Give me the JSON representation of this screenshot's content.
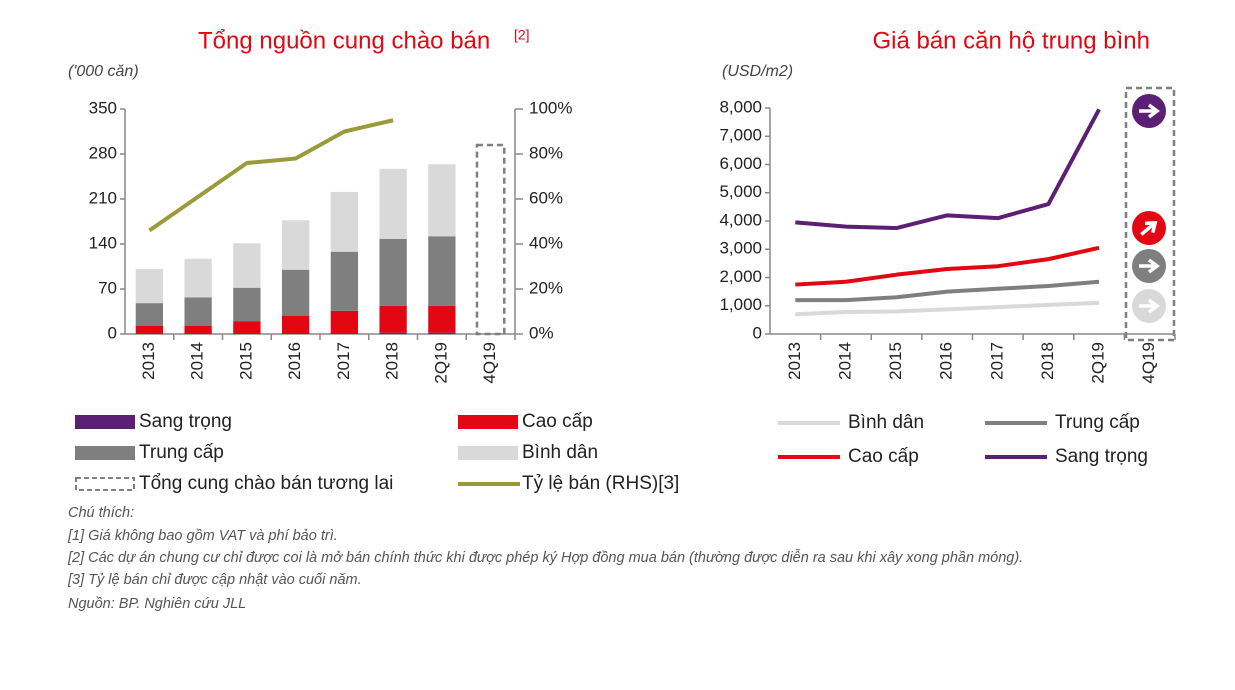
{
  "chart_data": [
    {
      "type": "bar",
      "title": "Tổng nguồn cung chào bán",
      "title_note": "[2]",
      "y_label": "('000 căn)",
      "categories": [
        "2013",
        "2014",
        "2015",
        "2016",
        "2017",
        "2018",
        "2Q19",
        "4Q19"
      ],
      "series": [
        {
          "name": "Sang trọng",
          "type": "bar",
          "color": "#5b1f74",
          "values": [
            0,
            0,
            0,
            0,
            0,
            2,
            2,
            null
          ]
        },
        {
          "name": "Cao cấp",
          "type": "bar",
          "color": "#e30613",
          "values": [
            13,
            13,
            20,
            28,
            36,
            42,
            42,
            null
          ]
        },
        {
          "name": "Trung cấp",
          "type": "bar",
          "color": "#7f7f7f",
          "values": [
            35,
            44,
            52,
            72,
            92,
            104,
            108,
            null
          ]
        },
        {
          "name": "Bình dân",
          "type": "bar",
          "color": "#d9d9d9",
          "values": [
            53,
            60,
            69,
            77,
            93,
            109,
            112,
            null
          ]
        },
        {
          "name": "Tổng cung chào bán tương lai",
          "type": "outline",
          "color": "#7f7f7f",
          "values": [
            null,
            null,
            null,
            null,
            null,
            null,
            null,
            294
          ]
        },
        {
          "name": "Tỷ lệ bán (RHS)[3]",
          "type": "line",
          "axis": "y2",
          "color": "#9a9a3a",
          "values": [
            46,
            61,
            76,
            78,
            90,
            95,
            null,
            null
          ]
        }
      ],
      "ylim": [
        0,
        350
      ],
      "yticks": [
        0,
        70,
        140,
        210,
        280,
        350
      ],
      "y2lim": [
        0,
        100
      ],
      "y2ticks": [
        {
          "value": 0,
          "label": "0%"
        },
        {
          "value": 20,
          "label": "20%"
        },
        {
          "value": 40,
          "label": "40%"
        },
        {
          "value": 60,
          "label": "60%"
        },
        {
          "value": 80,
          "label": "80%"
        },
        {
          "value": 100,
          "label": "100%"
        }
      ]
    },
    {
      "type": "line",
      "title": "Giá bán căn hộ trung bình",
      "y_label": "(USD/m2)",
      "categories": [
        "2013",
        "2014",
        "2015",
        "2016",
        "2017",
        "2018",
        "2Q19",
        "4Q19"
      ],
      "series": [
        {
          "name": "Bình dân",
          "color": "#d9d9d9",
          "values": [
            700,
            780,
            800,
            870,
            950,
            1030,
            1100,
            null
          ]
        },
        {
          "name": "Trung cấp",
          "color": "#7f7f7f",
          "values": [
            1200,
            1200,
            1300,
            1500,
            1600,
            1700,
            1850,
            null
          ]
        },
        {
          "name": "Cao cấp",
          "color": "#e30613",
          "values": [
            1750,
            1850,
            2100,
            2300,
            2400,
            2650,
            3050,
            null
          ]
        },
        {
          "name": "Sang trọng",
          "color": "#5b1f74",
          "values": [
            3950,
            3800,
            3750,
            4200,
            4100,
            4600,
            7950,
            null
          ]
        }
      ],
      "ylim": [
        0,
        8000
      ],
      "yticks": [
        0,
        {
          "value": 1000,
          "label": "1,000"
        },
        {
          "value": 2000,
          "label": "2,000"
        },
        {
          "value": 3000,
          "label": "3,000"
        },
        {
          "value": 4000,
          "label": "4,000"
        },
        {
          "value": 5000,
          "label": "5,000"
        },
        {
          "value": 6000,
          "label": "6,000"
        },
        {
          "value": 7000,
          "label": "7,000"
        },
        {
          "value": 8000,
          "label": "8,000"
        }
      ]
    }
  ],
  "notes": {
    "heading": "Chú thích:",
    "lines": [
      "[1] Giá không bao gồm VAT và phí bảo trì.",
      "[2] Các dự án chung cư chỉ được coi là mở bán chính thức khi được phép ký Hợp đồng mua bán (thường được diễn ra sau khi xây xong phần móng).",
      "[3] Tỷ lệ bán chỉ được cập nhật vào cuối năm."
    ],
    "source": "Nguồn: BP. Nghiên cứu JLL"
  }
}
